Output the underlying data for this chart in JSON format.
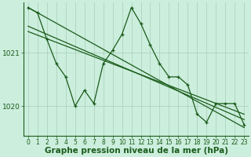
{
  "bg_color": "#cceedd",
  "line_color": "#1a5c1a",
  "grid_color": "#aaccbb",
  "xlabel": "Graphe pression niveau de la mer (hPa)",
  "xlabel_fontsize": 7.5,
  "xtick_fontsize": 5.5,
  "ytick_fontsize": 6.5,
  "ylim": [
    1019.45,
    1021.95
  ],
  "yticks": [
    1020,
    1021
  ],
  "xticks": [
    0,
    1,
    2,
    3,
    4,
    5,
    6,
    7,
    8,
    9,
    10,
    11,
    12,
    13,
    14,
    15,
    16,
    17,
    18,
    19,
    20,
    21,
    22,
    23
  ],
  "series1": [
    1021.85,
    1021.75,
    1021.25,
    1020.8,
    1020.55,
    1020.0,
    1020.3,
    1020.05,
    1020.8,
    1021.05,
    1021.35,
    1021.85,
    1021.55,
    1021.15,
    1020.8,
    1020.55,
    1020.55,
    1020.4,
    1019.85,
    1019.7,
    1020.05,
    1020.05,
    1020.05,
    1019.65
  ],
  "trend1_x": [
    0,
    23
  ],
  "trend1_y": [
    1021.85,
    1019.6
  ],
  "trend2_x": [
    0,
    23
  ],
  "trend2_y": [
    1021.5,
    1019.75
  ],
  "trend3_x": [
    0,
    23
  ],
  "trend3_y": [
    1021.4,
    1019.85
  ]
}
